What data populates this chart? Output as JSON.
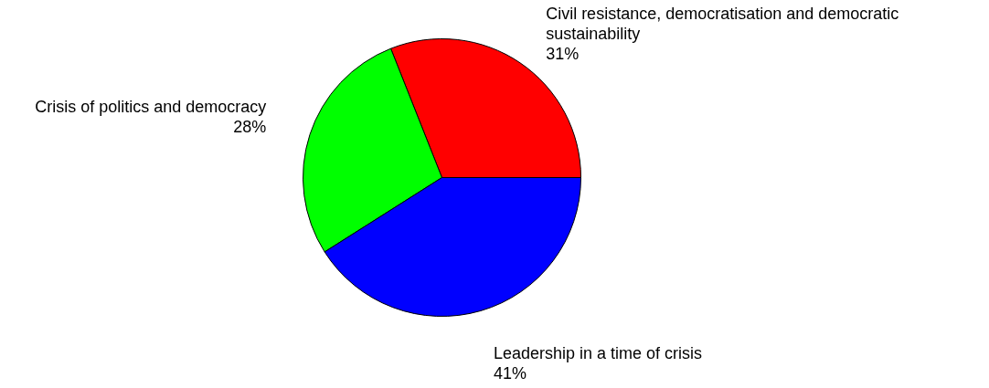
{
  "chart_data": {
    "type": "pie",
    "categories": [
      "Civil resistance, democratisation and democratic sustainability",
      "Crisis of politics and democracy",
      "Leadership in a time of crisis"
    ],
    "values": [
      31,
      28,
      41
    ],
    "colors": [
      "#ff0000",
      "#00ff00",
      "#0000ff"
    ],
    "value_labels": [
      "31%",
      "28%",
      "41%"
    ]
  }
}
